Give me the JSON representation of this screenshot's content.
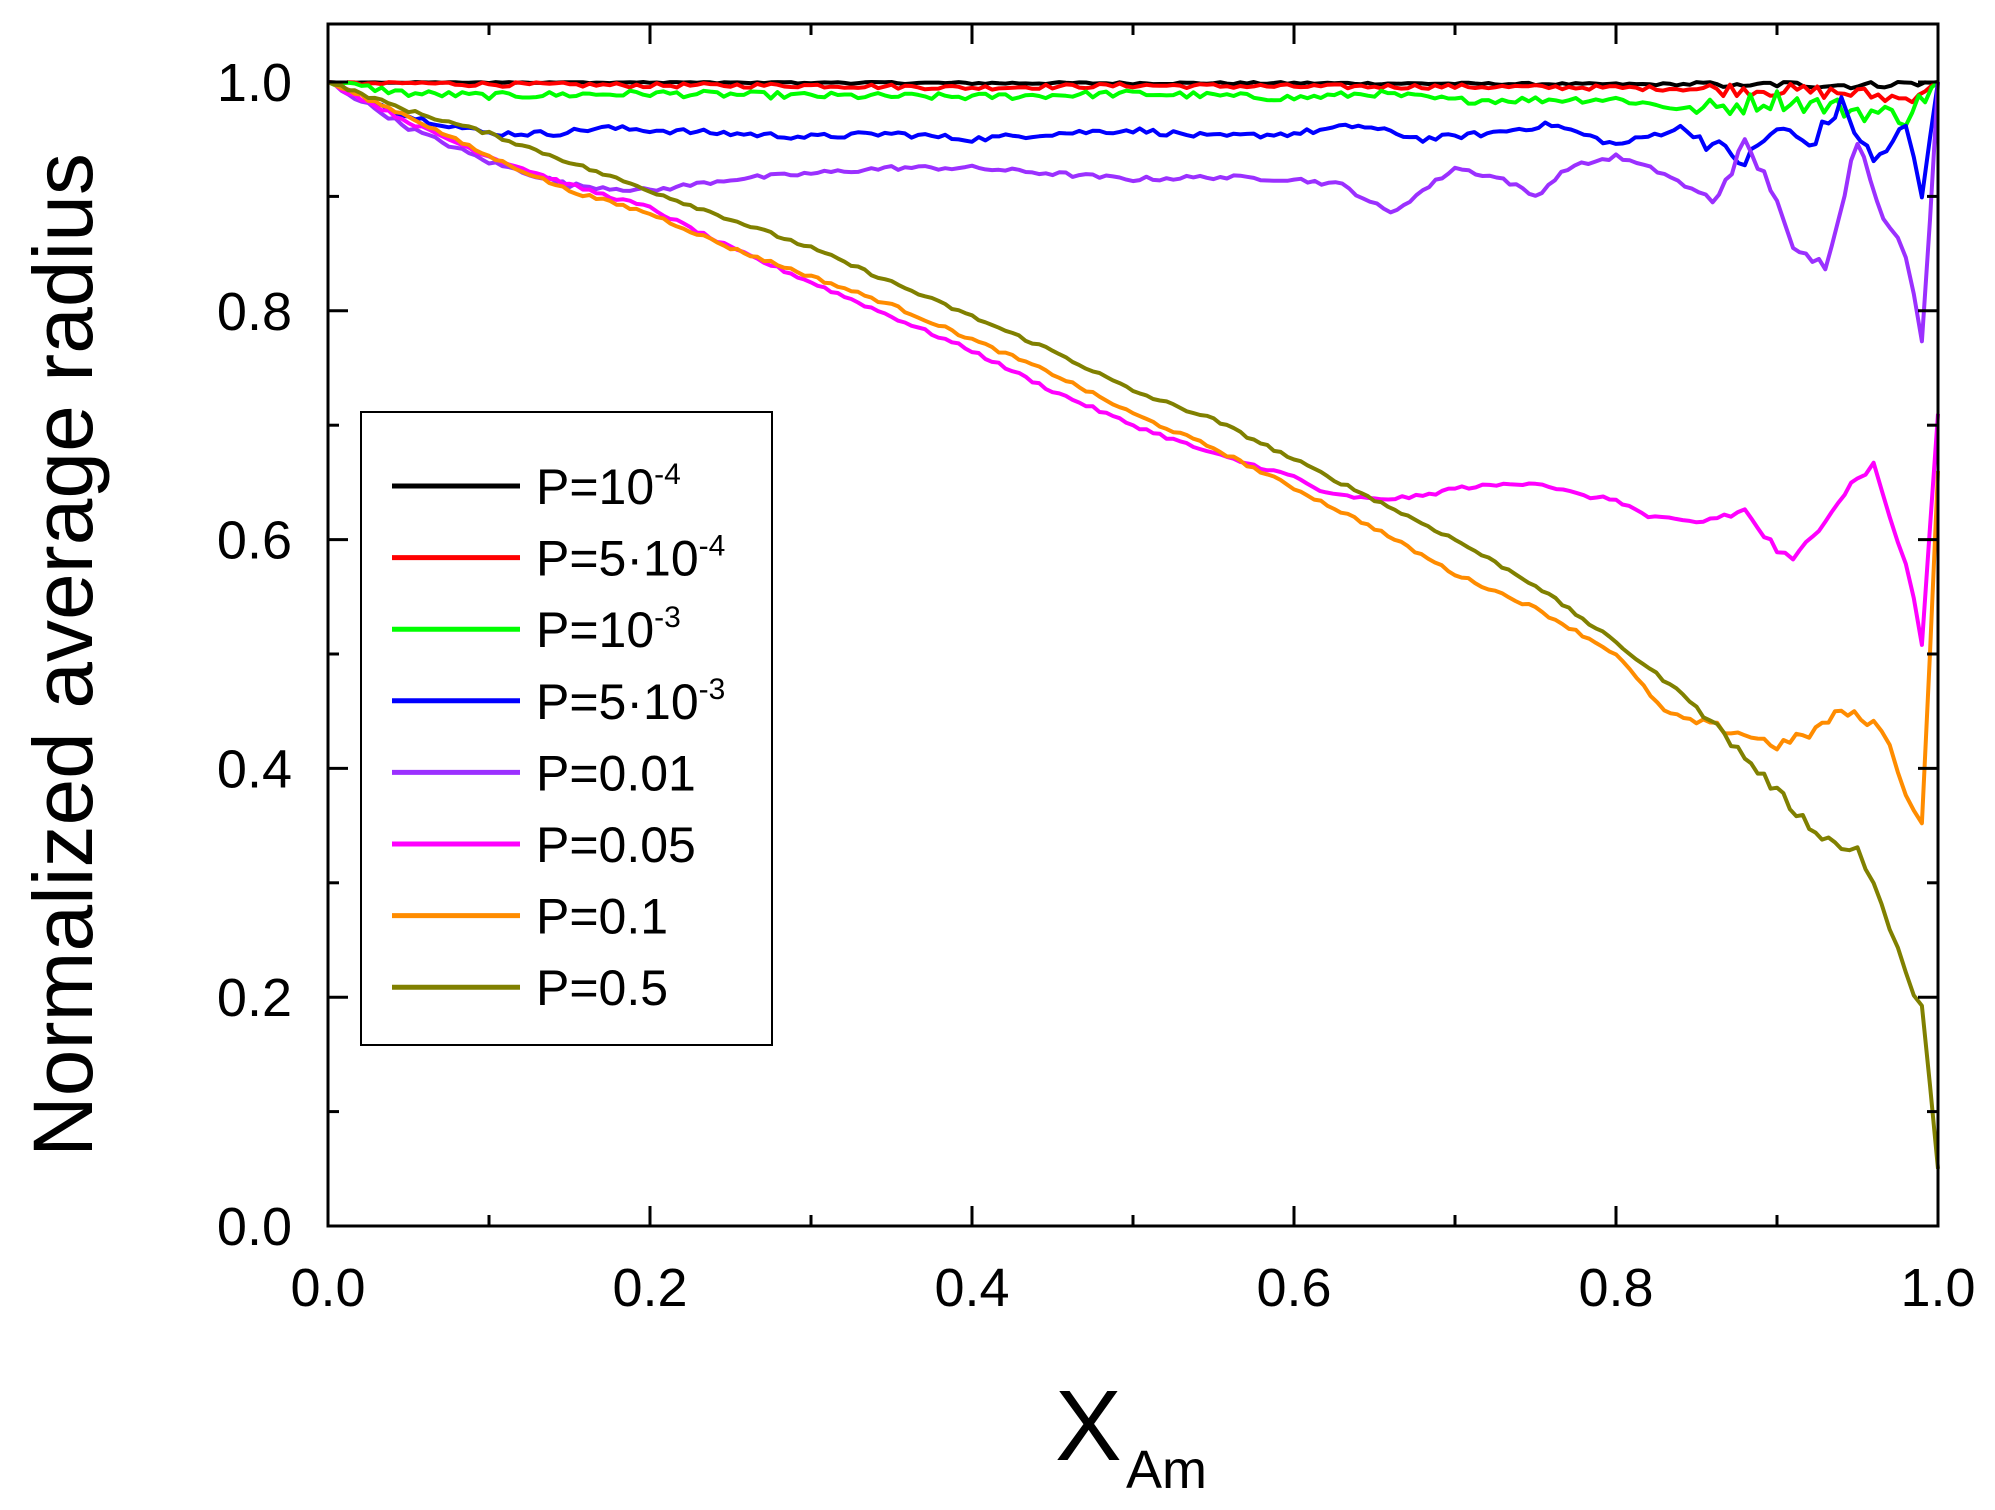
{
  "chart_data": {
    "type": "line",
    "title": "",
    "xlabel": {
      "main": "X",
      "sub": "Am"
    },
    "ylabel": "Normalized average radius",
    "xlim": [
      0.0,
      1.0
    ],
    "ylim": [
      0.0,
      1.0
    ],
    "xticks": [
      "0.0",
      "0.2",
      "0.4",
      "0.6",
      "0.8",
      "1.0"
    ],
    "yticks": [
      "0.0",
      "0.2",
      "0.4",
      "0.6",
      "0.8",
      "1.0"
    ],
    "grid": false,
    "legend_position": "center-left",
    "series": [
      {
        "name": "P=10-4",
        "label_base": "P=10",
        "label_exp": "-4",
        "color": "#000000",
        "x": [
          0,
          0.2,
          0.4,
          0.6,
          0.8,
          0.9,
          0.95,
          1.0
        ],
        "y": [
          1.0,
          1.0,
          0.999,
          0.999,
          0.998,
          0.998,
          0.997,
          1.0
        ]
      },
      {
        "name": "P=5·10-4",
        "label_base": "P=5·10",
        "label_exp": "-4",
        "color": "#ff0000",
        "x": [
          0,
          0.1,
          0.2,
          0.3,
          0.4,
          0.5,
          0.6,
          0.7,
          0.8,
          0.9,
          0.95,
          0.98,
          1.0
        ],
        "y": [
          1.0,
          0.998,
          0.997,
          0.997,
          0.995,
          0.997,
          0.996,
          0.996,
          0.995,
          0.993,
          0.99,
          0.985,
          1.0
        ]
      },
      {
        "name": "P=10-3",
        "label_base": "P=10",
        "label_exp": "-3",
        "color": "#00ff00",
        "x": [
          0,
          0.05,
          0.1,
          0.2,
          0.3,
          0.4,
          0.5,
          0.6,
          0.65,
          0.7,
          0.8,
          0.85,
          0.9,
          0.95,
          0.98,
          1.0
        ],
        "y": [
          1.0,
          0.99,
          0.988,
          0.99,
          0.988,
          0.987,
          0.99,
          0.986,
          0.99,
          0.984,
          0.985,
          0.975,
          0.985,
          0.975,
          0.97,
          1.0
        ]
      },
      {
        "name": "P=5·10-3",
        "label_base": "P=5·10",
        "label_exp": "-3",
        "color": "#0000ff",
        "x": [
          0,
          0.05,
          0.1,
          0.14,
          0.17,
          0.2,
          0.25,
          0.3,
          0.35,
          0.4,
          0.45,
          0.5,
          0.55,
          0.6,
          0.64,
          0.68,
          0.72,
          0.76,
          0.8,
          0.84,
          0.88,
          0.9,
          0.92,
          0.94,
          0.96,
          0.98,
          0.99,
          1.0
        ],
        "y": [
          1.0,
          0.97,
          0.955,
          0.955,
          0.96,
          0.958,
          0.955,
          0.952,
          0.955,
          0.95,
          0.955,
          0.958,
          0.952,
          0.955,
          0.962,
          0.95,
          0.955,
          0.963,
          0.945,
          0.96,
          0.93,
          0.96,
          0.945,
          0.98,
          0.93,
          0.96,
          0.9,
          1.0
        ]
      },
      {
        "name": "P=0.01",
        "label_base": "P=0.01",
        "label_exp": "",
        "color": "#9b30ff",
        "x": [
          0,
          0.05,
          0.1,
          0.15,
          0.2,
          0.25,
          0.3,
          0.35,
          0.4,
          0.45,
          0.5,
          0.55,
          0.6,
          0.63,
          0.66,
          0.68,
          0.7,
          0.73,
          0.75,
          0.77,
          0.8,
          0.83,
          0.86,
          0.88,
          0.9,
          0.91,
          0.93,
          0.95,
          0.97,
          0.98,
          0.99,
          1.0
        ],
        "y": [
          1.0,
          0.96,
          0.93,
          0.91,
          0.905,
          0.915,
          0.92,
          0.925,
          0.925,
          0.92,
          0.915,
          0.917,
          0.915,
          0.91,
          0.885,
          0.905,
          0.925,
          0.915,
          0.9,
          0.925,
          0.935,
          0.92,
          0.895,
          0.945,
          0.9,
          0.85,
          0.84,
          0.95,
          0.87,
          0.85,
          0.77,
          1.0
        ]
      },
      {
        "name": "P=0.05",
        "label_base": "P=0.05",
        "label_exp": "",
        "color": "#ff00ff",
        "x": [
          0,
          0.05,
          0.1,
          0.15,
          0.2,
          0.25,
          0.3,
          0.35,
          0.4,
          0.45,
          0.5,
          0.55,
          0.6,
          0.62,
          0.65,
          0.68,
          0.7,
          0.73,
          0.75,
          0.78,
          0.8,
          0.82,
          0.85,
          0.88,
          0.9,
          0.91,
          0.93,
          0.95,
          0.96,
          0.97,
          0.98,
          0.99,
          1.0
        ],
        "y": [
          1.0,
          0.965,
          0.935,
          0.91,
          0.89,
          0.855,
          0.825,
          0.795,
          0.765,
          0.73,
          0.7,
          0.675,
          0.655,
          0.64,
          0.635,
          0.638,
          0.645,
          0.648,
          0.65,
          0.638,
          0.635,
          0.62,
          0.615,
          0.625,
          0.59,
          0.58,
          0.62,
          0.655,
          0.665,
          0.62,
          0.58,
          0.51,
          0.71
        ]
      },
      {
        "name": "P=0.1",
        "label_base": "P=0.1",
        "label_exp": "",
        "color": "#ff8c00",
        "x": [
          0,
          0.05,
          0.1,
          0.15,
          0.2,
          0.25,
          0.3,
          0.35,
          0.4,
          0.45,
          0.5,
          0.55,
          0.6,
          0.65,
          0.7,
          0.75,
          0.8,
          0.83,
          0.85,
          0.88,
          0.9,
          0.92,
          0.94,
          0.96,
          0.97,
          0.98,
          0.99,
          1.0
        ],
        "y": [
          1.0,
          0.97,
          0.935,
          0.905,
          0.885,
          0.855,
          0.83,
          0.805,
          0.775,
          0.745,
          0.71,
          0.68,
          0.645,
          0.61,
          0.57,
          0.54,
          0.5,
          0.45,
          0.44,
          0.43,
          0.42,
          0.43,
          0.45,
          0.44,
          0.42,
          0.38,
          0.35,
          0.66
        ]
      },
      {
        "name": "P=0.5",
        "label_base": "P=0.5",
        "label_exp": "",
        "color": "#808000",
        "x": [
          0,
          0.05,
          0.1,
          0.15,
          0.2,
          0.25,
          0.3,
          0.35,
          0.4,
          0.45,
          0.5,
          0.55,
          0.6,
          0.65,
          0.7,
          0.75,
          0.8,
          0.85,
          0.88,
          0.9,
          0.92,
          0.94,
          0.95,
          0.96,
          0.97,
          0.98,
          0.99,
          1.0
        ],
        "y": [
          1.0,
          0.975,
          0.955,
          0.93,
          0.905,
          0.88,
          0.855,
          0.825,
          0.795,
          0.765,
          0.73,
          0.705,
          0.67,
          0.635,
          0.6,
          0.56,
          0.51,
          0.455,
          0.41,
          0.38,
          0.35,
          0.33,
          0.33,
          0.3,
          0.26,
          0.22,
          0.19,
          0.05
        ]
      }
    ]
  }
}
